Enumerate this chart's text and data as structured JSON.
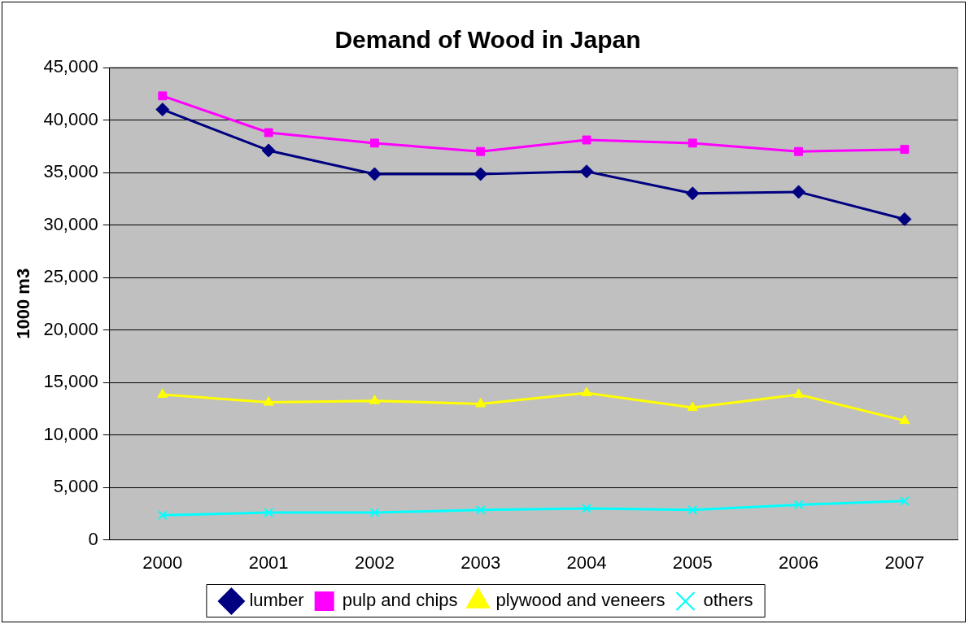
{
  "chart_data": {
    "type": "line",
    "title": "Demand of Wood in Japan",
    "ylabel": "1000 m3",
    "categories": [
      "2000",
      "2001",
      "2002",
      "2003",
      "2004",
      "2005",
      "2006",
      "2007"
    ],
    "series": [
      {
        "name": "lumber",
        "color": "#000080",
        "marker": "diamond",
        "values": [
          41000,
          37100,
          34850,
          34850,
          35100,
          33000,
          33150,
          30550
        ]
      },
      {
        "name": "pulp and chips",
        "color": "#ff00ff",
        "marker": "square",
        "values": [
          42300,
          38800,
          37800,
          37000,
          38100,
          37800,
          37000,
          37200
        ]
      },
      {
        "name": "plywood and veneers",
        "color": "#ffff00",
        "marker": "triangle",
        "values": [
          13850,
          13100,
          13250,
          12950,
          14000,
          12600,
          13850,
          11350
        ]
      },
      {
        "name": "others",
        "color": "#00ffff",
        "marker": "cross",
        "values": [
          2350,
          2600,
          2600,
          2850,
          3000,
          2850,
          3350,
          3700
        ]
      }
    ],
    "ylim": [
      0,
      45000
    ],
    "yticks": [
      {
        "value": 0,
        "label": "0"
      },
      {
        "value": 5000,
        "label": "5,000"
      },
      {
        "value": 10000,
        "label": "10,000"
      },
      {
        "value": 15000,
        "label": "15,000"
      },
      {
        "value": 20000,
        "label": "20,000"
      },
      {
        "value": 25000,
        "label": "25,000"
      },
      {
        "value": 30000,
        "label": "30,000"
      },
      {
        "value": 35000,
        "label": "35,000"
      },
      {
        "value": 40000,
        "label": "40,000"
      },
      {
        "value": 45000,
        "label": "45,000"
      }
    ],
    "grid": "y",
    "legend": "bottom",
    "line_style": "solid"
  }
}
